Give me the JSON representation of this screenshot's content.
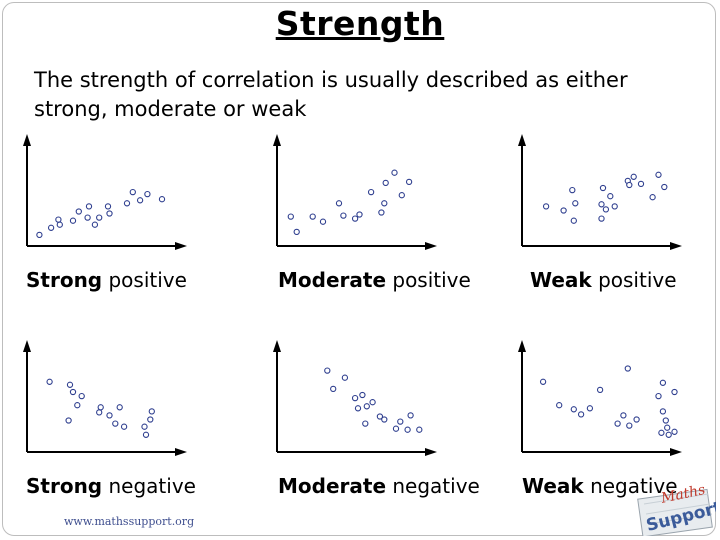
{
  "title": "Strength",
  "intro": "The strength of correlation is usually described as either strong, moderate or weak",
  "footer": "www.mathssupport.org",
  "logo_text": "Maths Support",
  "point_color": "#2f3f8f",
  "panels": [
    {
      "name": "strong-positive",
      "strength": "Strong",
      "direction": "positive",
      "points": [
        [
          3,
          3
        ],
        [
          11,
          10
        ],
        [
          17,
          13
        ],
        [
          16,
          18
        ],
        [
          26,
          17
        ],
        [
          41,
          13
        ],
        [
          30,
          26
        ],
        [
          36,
          20
        ],
        [
          44,
          20
        ],
        [
          37,
          31
        ],
        [
          51,
          24
        ],
        [
          50,
          31
        ],
        [
          63,
          34
        ],
        [
          72,
          37
        ],
        [
          67,
          45
        ],
        [
          77,
          43
        ],
        [
          87,
          38
        ]
      ]
    },
    {
      "name": "moderate-positive",
      "strength": "Moderate",
      "direction": "positive",
      "points": [
        [
          4,
          21
        ],
        [
          8,
          6
        ],
        [
          19,
          21
        ],
        [
          26,
          16
        ],
        [
          37,
          34
        ],
        [
          40,
          22
        ],
        [
          51,
          23
        ],
        [
          48,
          19
        ],
        [
          59,
          45
        ],
        [
          66,
          25
        ],
        [
          68,
          34
        ],
        [
          80,
          42
        ],
        [
          69,
          54
        ],
        [
          75,
          64
        ],
        [
          85,
          55
        ]
      ]
    },
    {
      "name": "weak-positive",
      "strength": "Weak",
      "direction": "positive",
      "points": [
        [
          11,
          31
        ],
        [
          23,
          27
        ],
        [
          29,
          47
        ],
        [
          30,
          17
        ],
        [
          31,
          34
        ],
        [
          50,
          49
        ],
        [
          49,
          19
        ],
        [
          55,
          41
        ],
        [
          52,
          28
        ],
        [
          49,
          33
        ],
        [
          58,
          31
        ],
        [
          67,
          56
        ],
        [
          68,
          52
        ],
        [
          71,
          60
        ],
        [
          84,
          40
        ],
        [
          76,
          53
        ],
        [
          92,
          50
        ],
        [
          88,
          62
        ]
      ]
    },
    {
      "name": "strong-negative",
      "strength": "Strong",
      "direction": "negative",
      "points": [
        [
          10,
          61
        ],
        [
          24,
          58
        ],
        [
          26,
          51
        ],
        [
          29,
          38
        ],
        [
          23,
          23
        ],
        [
          32,
          47
        ],
        [
          44,
          31
        ],
        [
          45,
          36
        ],
        [
          51,
          28
        ],
        [
          55,
          20
        ],
        [
          58,
          36
        ],
        [
          61,
          17
        ],
        [
          75,
          17
        ],
        [
          76,
          9
        ],
        [
          79,
          24
        ],
        [
          80,
          32
        ]
      ]
    },
    {
      "name": "moderate-negative",
      "strength": "Moderate",
      "direction": "negative",
      "points": [
        [
          29,
          72
        ],
        [
          33,
          54
        ],
        [
          41,
          65
        ],
        [
          48,
          45
        ],
        [
          50,
          35
        ],
        [
          56,
          37
        ],
        [
          55,
          20
        ],
        [
          53,
          48
        ],
        [
          65,
          27
        ],
        [
          60,
          41
        ],
        [
          68,
          24
        ],
        [
          76,
          15
        ],
        [
          79,
          22
        ],
        [
          86,
          28
        ],
        [
          84,
          14
        ],
        [
          92,
          14
        ]
      ]
    },
    {
      "name": "weak-negative",
      "strength": "Weak",
      "direction": "negative",
      "points": [
        [
          9,
          61
        ],
        [
          20,
          38
        ],
        [
          30,
          34
        ],
        [
          41,
          35
        ],
        [
          35,
          29
        ],
        [
          48,
          53
        ],
        [
          67,
          74
        ],
        [
          64,
          28
        ],
        [
          60,
          20
        ],
        [
          73,
          24
        ],
        [
          68,
          18
        ],
        [
          91,
          60
        ],
        [
          88,
          47
        ],
        [
          91,
          32
        ],
        [
          93,
          23
        ],
        [
          94,
          16
        ],
        [
          99,
          51
        ],
        [
          95,
          9
        ],
        [
          90,
          11
        ],
        [
          99,
          12
        ]
      ]
    }
  ]
}
